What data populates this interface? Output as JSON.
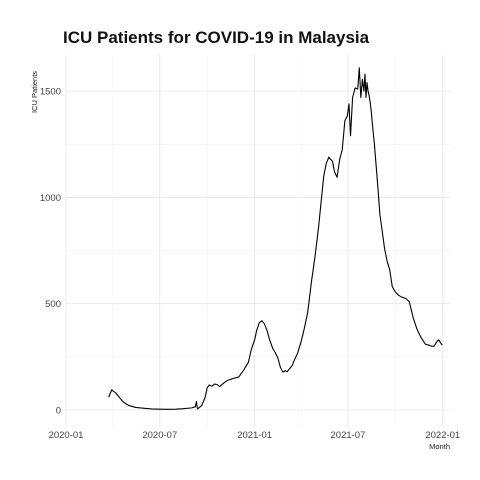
{
  "chart_data": {
    "type": "line",
    "title": "ICU Patients for COVID-19 in Malaysia",
    "xlabel": "Month",
    "ylabel": "ICU Patients",
    "x_ticks": [
      "2020-01",
      "2020-07",
      "2021-01",
      "2021-07",
      "2022-01"
    ],
    "y_ticks": [
      0,
      500,
      1000,
      1500
    ],
    "xlim": [
      "2020-01-01",
      "2022-01-15"
    ],
    "ylim": [
      -80,
      1670
    ],
    "grid": true,
    "legend": "none",
    "series": [
      {
        "x": [
          "2020-03-24",
          "2020-03-27",
          "2020-03-30",
          "2020-04-02",
          "2020-04-06",
          "2020-04-10",
          "2020-04-15",
          "2020-04-20",
          "2020-05-01",
          "2020-05-15",
          "2020-06-01",
          "2020-06-15",
          "2020-07-01",
          "2020-07-15",
          "2020-08-01",
          "2020-08-15",
          "2020-09-01",
          "2020-09-08",
          "2020-09-10",
          "2020-09-12",
          "2020-09-20",
          "2020-09-27",
          "2020-10-01",
          "2020-10-05",
          "2020-10-10",
          "2020-10-15",
          "2020-10-20",
          "2020-10-25",
          "2020-11-01",
          "2020-11-10",
          "2020-11-20",
          "2020-12-01",
          "2020-12-10",
          "2020-12-20",
          "2020-12-25",
          "2021-01-01",
          "2021-01-05",
          "2021-01-10",
          "2021-01-15",
          "2021-01-20",
          "2021-01-25",
          "2021-01-30",
          "2021-02-05",
          "2021-02-10",
          "2021-02-15",
          "2021-02-20",
          "2021-02-25",
          "2021-03-01",
          "2021-03-05",
          "2021-03-10",
          "2021-03-15",
          "2021-03-20",
          "2021-03-25",
          "2021-04-01",
          "2021-04-07",
          "2021-04-14",
          "2021-04-21",
          "2021-04-28",
          "2021-05-05",
          "2021-05-10",
          "2021-05-15",
          "2021-05-20",
          "2021-05-25",
          "2021-05-28",
          "2021-06-01",
          "2021-06-05",
          "2021-06-10",
          "2021-06-15",
          "2021-06-20",
          "2021-06-25",
          "2021-06-30",
          "2021-07-03",
          "2021-07-06",
          "2021-07-10",
          "2021-07-15",
          "2021-07-20",
          "2021-07-23",
          "2021-07-26",
          "2021-07-29",
          "2021-08-01",
          "2021-08-03",
          "2021-08-05",
          "2021-08-07",
          "2021-08-09",
          "2021-08-11",
          "2021-08-13",
          "2021-08-15",
          "2021-08-18",
          "2021-08-21",
          "2021-08-24",
          "2021-08-28",
          "2021-09-01",
          "2021-09-05",
          "2021-09-10",
          "2021-09-15",
          "2021-09-20",
          "2021-09-25",
          "2021-10-01",
          "2021-10-07",
          "2021-10-14",
          "2021-10-21",
          "2021-10-28",
          "2021-11-05",
          "2021-11-12",
          "2021-11-20",
          "2021-11-28",
          "2021-12-05",
          "2021-12-10",
          "2021-12-15",
          "2021-12-20",
          "2021-12-24",
          "2021-12-28",
          "2021-12-31"
        ],
        "y": [
          60,
          80,
          95,
          88,
          82,
          70,
          55,
          40,
          22,
          12,
          8,
          5,
          4,
          3,
          4,
          6,
          10,
          15,
          40,
          5,
          20,
          60,
          105,
          118,
          112,
          122,
          120,
          110,
          125,
          140,
          148,
          155,
          185,
          225,
          280,
          330,
          375,
          410,
          420,
          405,
          375,
          330,
          290,
          270,
          245,
          200,
          178,
          185,
          180,
          195,
          210,
          240,
          265,
          320,
          380,
          460,
          600,
          720,
          860,
          980,
          1100,
          1160,
          1190,
          1180,
          1170,
          1120,
          1095,
          1180,
          1225,
          1360,
          1385,
          1440,
          1290,
          1470,
          1515,
          1510,
          1610,
          1470,
          1555,
          1500,
          1580,
          1470,
          1540,
          1500,
          1480,
          1450,
          1410,
          1330,
          1260,
          1170,
          1050,
          920,
          850,
          760,
          700,
          660,
          580,
          555,
          540,
          530,
          525,
          510,
          430,
          380,
          340,
          310,
          305,
          300,
          300,
          320,
          330,
          315,
          305
        ]
      }
    ]
  }
}
